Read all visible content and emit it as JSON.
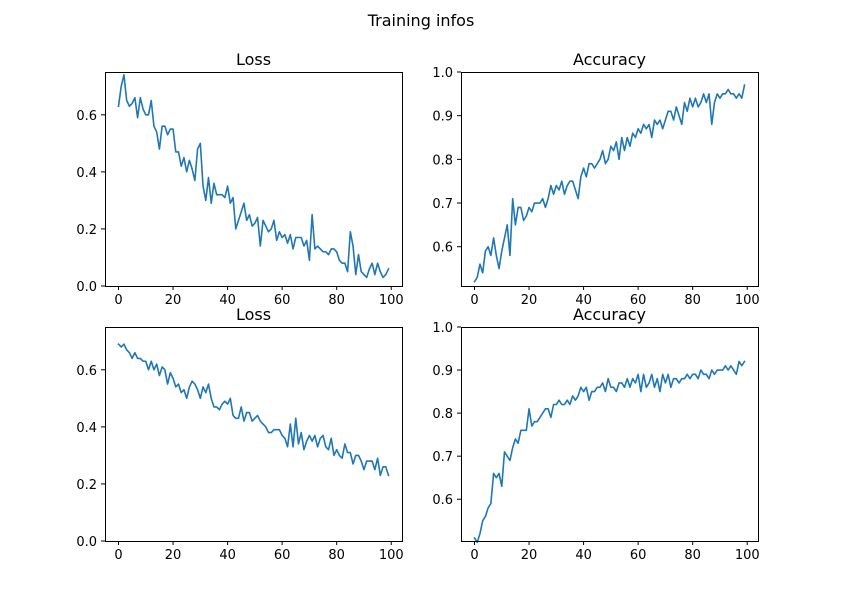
{
  "figure": {
    "title": "Training infos",
    "line_color": "#1f77b4"
  },
  "chart_data": [
    {
      "type": "line",
      "title": "Loss",
      "xlabel": "",
      "ylabel": "",
      "xlim": [
        -4.95,
        103.95
      ],
      "ylim": [
        0.0,
        0.75
      ],
      "xticks": [
        0,
        20,
        40,
        60,
        80,
        100
      ],
      "yticks": [
        0.0,
        0.2,
        0.4,
        0.6
      ],
      "ytick_labels": [
        "0.0",
        "0.2",
        "0.4",
        "0.6"
      ],
      "grid": false,
      "series": [
        {
          "x": [
            0,
            1,
            2,
            3,
            4,
            5,
            6,
            7,
            8,
            9,
            10,
            11,
            12,
            13,
            14,
            15,
            16,
            17,
            18,
            19,
            20,
            21,
            22,
            23,
            24,
            25,
            26,
            27,
            28,
            29,
            30,
            31,
            32,
            33,
            34,
            35,
            36,
            37,
            38,
            39,
            40,
            41,
            42,
            43,
            44,
            45,
            46,
            47,
            48,
            49,
            50,
            51,
            52,
            53,
            54,
            55,
            56,
            57,
            58,
            59,
            60,
            61,
            62,
            63,
            64,
            65,
            66,
            67,
            68,
            69,
            70,
            71,
            72,
            73,
            74,
            75,
            76,
            77,
            78,
            79,
            80,
            81,
            82,
            83,
            84,
            85,
            86,
            87,
            88,
            89,
            90,
            91,
            92,
            93,
            94,
            95,
            96,
            97,
            98,
            99
          ],
          "y": [
            0.63,
            0.7,
            0.74,
            0.65,
            0.63,
            0.64,
            0.66,
            0.59,
            0.66,
            0.62,
            0.6,
            0.6,
            0.65,
            0.56,
            0.54,
            0.48,
            0.56,
            0.56,
            0.53,
            0.55,
            0.55,
            0.47,
            0.47,
            0.42,
            0.45,
            0.4,
            0.44,
            0.41,
            0.37,
            0.48,
            0.5,
            0.35,
            0.3,
            0.38,
            0.29,
            0.36,
            0.32,
            0.32,
            0.32,
            0.31,
            0.35,
            0.29,
            0.31,
            0.2,
            0.23,
            0.26,
            0.29,
            0.23,
            0.25,
            0.21,
            0.22,
            0.24,
            0.14,
            0.23,
            0.21,
            0.19,
            0.2,
            0.23,
            0.16,
            0.19,
            0.17,
            0.18,
            0.15,
            0.18,
            0.13,
            0.17,
            0.17,
            0.17,
            0.14,
            0.16,
            0.09,
            0.25,
            0.13,
            0.14,
            0.13,
            0.12,
            0.12,
            0.11,
            0.13,
            0.13,
            0.12,
            0.09,
            0.08,
            0.08,
            0.05,
            0.19,
            0.14,
            0.04,
            0.11,
            0.05,
            0.04,
            0.03,
            0.06,
            0.08,
            0.04,
            0.08,
            0.05,
            0.03,
            0.04,
            0.06
          ]
        }
      ]
    },
    {
      "type": "line",
      "title": "Accuracy",
      "xlabel": "",
      "ylabel": "",
      "xlim": [
        -4.95,
        103.95
      ],
      "ylim": [
        0.51,
        1.0
      ],
      "xticks": [
        0,
        20,
        40,
        60,
        80,
        100
      ],
      "yticks": [
        0.6,
        0.7,
        0.8,
        0.9,
        1.0
      ],
      "ytick_labels": [
        "0.6",
        "0.7",
        "0.8",
        "0.9",
        "1.0"
      ],
      "grid": false,
      "series": [
        {
          "x": [
            0,
            1,
            2,
            3,
            4,
            5,
            6,
            7,
            8,
            9,
            10,
            11,
            12,
            13,
            14,
            15,
            16,
            17,
            18,
            19,
            20,
            21,
            22,
            23,
            24,
            25,
            26,
            27,
            28,
            29,
            30,
            31,
            32,
            33,
            34,
            35,
            36,
            37,
            38,
            39,
            40,
            41,
            42,
            43,
            44,
            45,
            46,
            47,
            48,
            49,
            50,
            51,
            52,
            53,
            54,
            55,
            56,
            57,
            58,
            59,
            60,
            61,
            62,
            63,
            64,
            65,
            66,
            67,
            68,
            69,
            70,
            71,
            72,
            73,
            74,
            75,
            76,
            77,
            78,
            79,
            80,
            81,
            82,
            83,
            84,
            85,
            86,
            87,
            88,
            89,
            90,
            91,
            92,
            93,
            94,
            95,
            96,
            97,
            98,
            99
          ],
          "y": [
            0.52,
            0.53,
            0.56,
            0.54,
            0.59,
            0.6,
            0.58,
            0.62,
            0.58,
            0.55,
            0.59,
            0.62,
            0.65,
            0.58,
            0.71,
            0.65,
            0.69,
            0.69,
            0.66,
            0.67,
            0.69,
            0.68,
            0.7,
            0.7,
            0.7,
            0.71,
            0.69,
            0.71,
            0.74,
            0.72,
            0.74,
            0.73,
            0.75,
            0.72,
            0.74,
            0.75,
            0.75,
            0.73,
            0.71,
            0.76,
            0.78,
            0.76,
            0.79,
            0.79,
            0.78,
            0.79,
            0.8,
            0.82,
            0.79,
            0.8,
            0.83,
            0.82,
            0.84,
            0.8,
            0.85,
            0.82,
            0.85,
            0.83,
            0.86,
            0.85,
            0.87,
            0.86,
            0.88,
            0.87,
            0.88,
            0.85,
            0.89,
            0.88,
            0.89,
            0.87,
            0.89,
            0.91,
            0.91,
            0.89,
            0.92,
            0.9,
            0.88,
            0.93,
            0.91,
            0.94,
            0.92,
            0.94,
            0.92,
            0.93,
            0.95,
            0.93,
            0.95,
            0.88,
            0.93,
            0.95,
            0.94,
            0.95,
            0.95,
            0.96,
            0.95,
            0.95,
            0.94,
            0.95,
            0.94,
            0.97
          ]
        }
      ]
    },
    {
      "type": "line",
      "title": "Loss",
      "xlabel": "",
      "ylabel": "",
      "xlim": [
        -4.95,
        103.95
      ],
      "ylim": [
        0.0,
        0.75
      ],
      "xticks": [
        0,
        20,
        40,
        60,
        80,
        100
      ],
      "yticks": [
        0.0,
        0.2,
        0.4,
        0.6
      ],
      "ytick_labels": [
        "0.0",
        "0.2",
        "0.4",
        "0.6"
      ],
      "grid": false,
      "series": [
        {
          "x": [
            0,
            1,
            2,
            3,
            4,
            5,
            6,
            7,
            8,
            9,
            10,
            11,
            12,
            13,
            14,
            15,
            16,
            17,
            18,
            19,
            20,
            21,
            22,
            23,
            24,
            25,
            26,
            27,
            28,
            29,
            30,
            31,
            32,
            33,
            34,
            35,
            36,
            37,
            38,
            39,
            40,
            41,
            42,
            43,
            44,
            45,
            46,
            47,
            48,
            49,
            50,
            51,
            52,
            53,
            54,
            55,
            56,
            57,
            58,
            59,
            60,
            61,
            62,
            63,
            64,
            65,
            66,
            67,
            68,
            69,
            70,
            71,
            72,
            73,
            74,
            75,
            76,
            77,
            78,
            79,
            80,
            81,
            82,
            83,
            84,
            85,
            86,
            87,
            88,
            89,
            90,
            91,
            92,
            93,
            94,
            95,
            96,
            97,
            98,
            99
          ],
          "y": [
            0.69,
            0.68,
            0.69,
            0.67,
            0.66,
            0.64,
            0.66,
            0.64,
            0.64,
            0.63,
            0.63,
            0.6,
            0.63,
            0.6,
            0.62,
            0.58,
            0.61,
            0.6,
            0.55,
            0.59,
            0.57,
            0.54,
            0.55,
            0.52,
            0.53,
            0.5,
            0.54,
            0.56,
            0.55,
            0.53,
            0.5,
            0.54,
            0.52,
            0.55,
            0.5,
            0.47,
            0.47,
            0.46,
            0.48,
            0.49,
            0.48,
            0.5,
            0.44,
            0.43,
            0.43,
            0.47,
            0.42,
            0.45,
            0.45,
            0.42,
            0.43,
            0.44,
            0.42,
            0.41,
            0.4,
            0.38,
            0.38,
            0.39,
            0.39,
            0.39,
            0.37,
            0.36,
            0.33,
            0.41,
            0.33,
            0.43,
            0.34,
            0.38,
            0.32,
            0.35,
            0.37,
            0.35,
            0.37,
            0.33,
            0.36,
            0.37,
            0.33,
            0.32,
            0.36,
            0.3,
            0.32,
            0.3,
            0.29,
            0.34,
            0.31,
            0.31,
            0.27,
            0.3,
            0.3,
            0.28,
            0.25,
            0.28,
            0.28,
            0.28,
            0.25,
            0.29,
            0.23,
            0.26,
            0.26,
            0.23
          ]
        }
      ]
    },
    {
      "type": "line",
      "title": "Accuracy",
      "xlabel": "",
      "ylabel": "",
      "xlim": [
        -4.95,
        103.95
      ],
      "ylim": [
        0.503,
        1.0
      ],
      "xticks": [
        0,
        20,
        40,
        60,
        80,
        100
      ],
      "yticks": [
        0.6,
        0.7,
        0.8,
        0.9,
        1.0
      ],
      "ytick_labels": [
        "0.6",
        "0.7",
        "0.8",
        "0.9",
        "1.0"
      ],
      "grid": false,
      "series": [
        {
          "x": [
            0,
            1,
            2,
            3,
            4,
            5,
            6,
            7,
            8,
            9,
            10,
            11,
            12,
            13,
            14,
            15,
            16,
            17,
            18,
            19,
            20,
            21,
            22,
            23,
            24,
            25,
            26,
            27,
            28,
            29,
            30,
            31,
            32,
            33,
            34,
            35,
            36,
            37,
            38,
            39,
            40,
            41,
            42,
            43,
            44,
            45,
            46,
            47,
            48,
            49,
            50,
            51,
            52,
            53,
            54,
            55,
            56,
            57,
            58,
            59,
            60,
            61,
            62,
            63,
            64,
            65,
            66,
            67,
            68,
            69,
            70,
            71,
            72,
            73,
            74,
            75,
            76,
            77,
            78,
            79,
            80,
            81,
            82,
            83,
            84,
            85,
            86,
            87,
            88,
            89,
            90,
            91,
            92,
            93,
            94,
            95,
            96,
            97,
            98,
            99
          ],
          "y": [
            0.51,
            0.5,
            0.52,
            0.55,
            0.56,
            0.58,
            0.59,
            0.66,
            0.65,
            0.66,
            0.63,
            0.71,
            0.7,
            0.69,
            0.72,
            0.74,
            0.73,
            0.76,
            0.76,
            0.76,
            0.81,
            0.77,
            0.78,
            0.78,
            0.79,
            0.8,
            0.81,
            0.81,
            0.79,
            0.82,
            0.82,
            0.83,
            0.82,
            0.82,
            0.83,
            0.82,
            0.84,
            0.83,
            0.84,
            0.86,
            0.85,
            0.86,
            0.83,
            0.85,
            0.85,
            0.86,
            0.86,
            0.87,
            0.85,
            0.88,
            0.86,
            0.86,
            0.85,
            0.87,
            0.87,
            0.86,
            0.88,
            0.86,
            0.88,
            0.87,
            0.89,
            0.85,
            0.89,
            0.86,
            0.87,
            0.89,
            0.86,
            0.88,
            0.85,
            0.89,
            0.87,
            0.89,
            0.86,
            0.88,
            0.88,
            0.87,
            0.88,
            0.88,
            0.89,
            0.88,
            0.89,
            0.89,
            0.88,
            0.9,
            0.89,
            0.89,
            0.88,
            0.9,
            0.89,
            0.9,
            0.9,
            0.9,
            0.91,
            0.9,
            0.91,
            0.9,
            0.89,
            0.92,
            0.91,
            0.92
          ]
        }
      ]
    }
  ]
}
